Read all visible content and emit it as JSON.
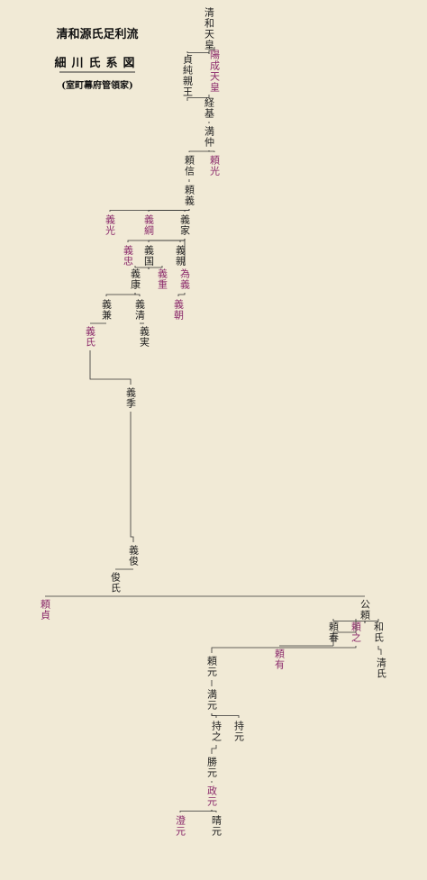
{
  "header": {
    "title": "清和源氏足利流",
    "subtitle": "細川氏系図",
    "note": "(室町幕府管領家)"
  },
  "nodes": [
    {
      "label": "清和天皇",
      "color": "#222222"
    },
    {
      "label": "陽成天皇",
      "color": "#8b2a6b"
    },
    {
      "label": "貞純親王",
      "color": "#222222"
    },
    {
      "label": "経基",
      "color": "#222222"
    },
    {
      "label": "満仲",
      "color": "#222222"
    },
    {
      "label": "頼光",
      "color": "#8b2a6b"
    },
    {
      "label": "頼信",
      "color": "#222222"
    },
    {
      "label": "頼義",
      "color": "#222222"
    },
    {
      "label": "義光",
      "color": "#8b2a6b"
    },
    {
      "label": "義綱",
      "color": "#8b2a6b"
    },
    {
      "label": "義家",
      "color": "#222222"
    },
    {
      "label": "義忠",
      "color": "#8b2a6b"
    },
    {
      "label": "義国",
      "color": "#222222"
    },
    {
      "label": "義親",
      "color": "#222222"
    },
    {
      "label": "義重",
      "color": "#8b2a6b"
    },
    {
      "label": "義康",
      "color": "#222222"
    },
    {
      "label": "為義",
      "color": "#8b2a6b"
    },
    {
      "label": "義兼",
      "color": "#222222"
    },
    {
      "label": "義清",
      "color": "#222222"
    },
    {
      "label": "義朝",
      "color": "#8b2a6b"
    },
    {
      "label": "義実",
      "color": "#222222"
    },
    {
      "label": "義氏",
      "color": "#8b2a6b"
    },
    {
      "label": "義季",
      "color": "#222222"
    },
    {
      "label": "俊氏",
      "color": "#222222"
    },
    {
      "label": "義俊",
      "color": "#222222"
    },
    {
      "label": "公頼",
      "color": "#222222"
    },
    {
      "label": "頼貞",
      "color": "#8b2a6b"
    },
    {
      "label": "頼春",
      "color": "#222222"
    },
    {
      "label": "頼之",
      "color": "#8b2a6b"
    },
    {
      "label": "和氏",
      "color": "#222222"
    },
    {
      "label": "頼元",
      "color": "#222222"
    },
    {
      "label": "頼有",
      "color": "#8b2a6b"
    },
    {
      "label": "満元",
      "color": "#222222"
    },
    {
      "label": "持元",
      "color": "#222222"
    },
    {
      "label": "持之",
      "color": "#222222"
    },
    {
      "label": "勝元",
      "color": "#222222"
    },
    {
      "label": "政元",
      "color": "#8b2a6b"
    },
    {
      "label": "澄元",
      "color": "#8b2a6b"
    },
    {
      "label": "晴元",
      "color": "#222222"
    },
    {
      "label": "清氏",
      "color": "#222222"
    }
  ]
}
